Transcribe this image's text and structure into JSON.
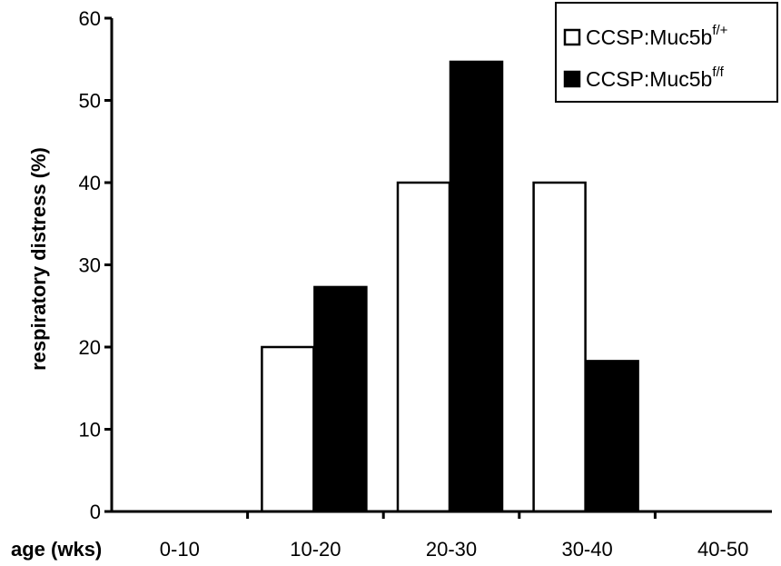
{
  "chart_data": {
    "type": "bar",
    "categories": [
      "0-10",
      "10-20",
      "20-30",
      "30-40",
      "40-50"
    ],
    "series": [
      {
        "name": "CCSP:Muc5b",
        "name_sup": "f/+",
        "fill": "#ffffff",
        "values": [
          0,
          20,
          40,
          40,
          0
        ]
      },
      {
        "name": "CCSP:Muc5b",
        "name_sup": "f/f",
        "fill": "#000000",
        "values": [
          0,
          27.3,
          54.7,
          18.3,
          0
        ]
      }
    ],
    "title": "",
    "xlabel": "age (wks)",
    "ylabel": "respiratory distress (%)",
    "ylim": [
      0,
      60
    ],
    "yticks": [
      0,
      10,
      20,
      30,
      40,
      50,
      60
    ],
    "grid": false,
    "legend_position": "top-right"
  }
}
